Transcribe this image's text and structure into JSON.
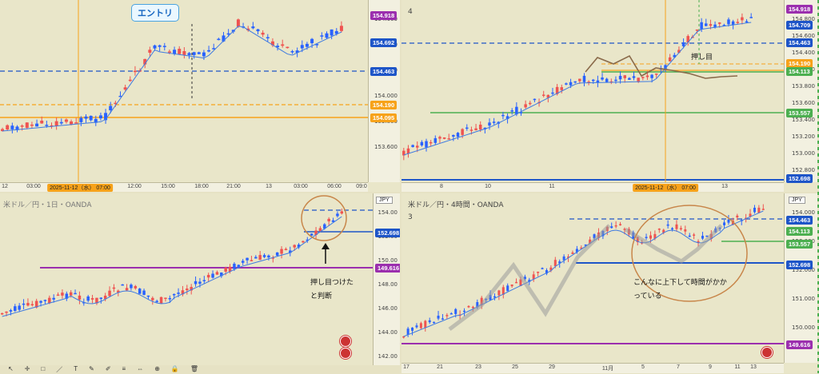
{
  "top_left": {
    "annotation_label": "エントリ",
    "price_ticks": [
      "154.600",
      "154.400",
      "154.200",
      "154.000",
      "153.800",
      "153.600"
    ],
    "price_tags": [
      {
        "label": "154.918",
        "color": "#9b2fae"
      },
      {
        "label": "154.692",
        "color": "#1e55c8"
      },
      {
        "label": "154.463",
        "color": "#1e55c8"
      },
      {
        "label": "154.190",
        "color": "#f7a21a"
      },
      {
        "label": "154.095",
        "color": "#f7a21a"
      }
    ],
    "time_ticks": [
      "12",
      "03:00",
      "2025-11-12（水） 07:00",
      "12:00",
      "15:00",
      "18:00",
      "21:00",
      "13",
      "03:00",
      "06:00",
      "09:0"
    ]
  },
  "top_right": {
    "title_fragment": "4",
    "annotation_note": "押し目",
    "price_ticks": [
      "154.800",
      "154.600",
      "154.400",
      "154.200",
      "153.800",
      "153.600",
      "153.400",
      "153.200",
      "153.000",
      "152.800"
    ],
    "price_tags": [
      {
        "label": "154.918",
        "color": "#9b2fae"
      },
      {
        "label": "154.709",
        "color": "#1e55c8"
      },
      {
        "label": "154.463",
        "color": "#1e55c8"
      },
      {
        "label": "154.190",
        "color": "#f7a21a"
      },
      {
        "label": "154.113",
        "color": "#4caf50"
      },
      {
        "label": "153.557",
        "color": "#4caf50"
      },
      {
        "label": "152.698",
        "color": "#1e55c8"
      }
    ],
    "time_ticks": [
      "8",
      "10",
      "11",
      "2025-11-12（水） 07:00",
      "13"
    ]
  },
  "bottom_left": {
    "title": "米ドル／円・1日・OANDA",
    "currency": "JPY",
    "annotation_note": "押し目つけたと判断",
    "price_ticks": [
      "154.00",
      "152.00",
      "150.00",
      "148.00",
      "146.00",
      "144.00",
      "142.00"
    ],
    "price_tags": [
      {
        "label": "152.698",
        "color": "#1e55c8"
      },
      {
        "label": "149.616",
        "color": "#9b2fae"
      }
    ],
    "toolbar_icons": [
      "cursor",
      "crosshair",
      "square",
      "line",
      "text",
      "brush",
      "pen",
      "fib",
      "measure",
      "zoom",
      "lock",
      "trash"
    ]
  },
  "bottom_right": {
    "title": "米ドル／円・4時間・OANDA",
    "title_fragment": "3",
    "currency": "JPY",
    "annotation_note": "こんなに上下して時間がかかっている",
    "price_ticks": [
      "154.000",
      "153.000",
      "152.000",
      "151.000",
      "150.000"
    ],
    "price_tags": [
      {
        "label": "154.463",
        "color": "#1e55c8"
      },
      {
        "label": "154.113",
        "color": "#4caf50"
      },
      {
        "label": "153.557",
        "color": "#4caf50"
      },
      {
        "label": "152.698",
        "color": "#1e55c8"
      },
      {
        "label": "149.616",
        "color": "#9b2fae"
      }
    ],
    "time_ticks": [
      "17",
      "21",
      "23",
      "25",
      "29",
      "11月",
      "5",
      "7",
      "9",
      "11",
      "13"
    ]
  }
}
